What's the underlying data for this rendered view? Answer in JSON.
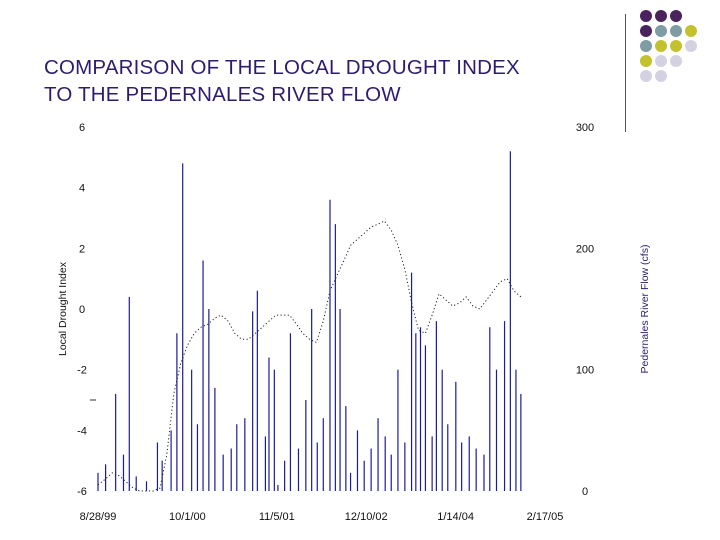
{
  "title": {
    "line1": "COMPARISON OF THE LOCAL DROUGHT INDEX",
    "line2": "TO THE PEDERNALES RIVER FLOW"
  },
  "decor": {
    "colors": {
      "purple": "#4a235c",
      "slate": "#7e9ca3",
      "olive": "#c4c12e",
      "lavender": "#d4d2e2"
    },
    "grid": [
      [
        "purple",
        "purple",
        "purple",
        "",
        ""
      ],
      [
        "purple",
        "slate",
        "slate",
        "olive",
        ""
      ],
      [
        "slate",
        "olive",
        "olive",
        "lavender",
        ""
      ],
      [
        "olive",
        "lavender",
        "lavender",
        "",
        ""
      ],
      [
        "lavender",
        "lavender",
        "",
        "",
        ""
      ]
    ]
  },
  "chart_data": {
    "type": "line",
    "y_left": {
      "label": "Local Drought Index",
      "min": -6,
      "max": 6,
      "ticks": [
        "6",
        "4",
        "2",
        "0",
        "-2",
        "-4",
        "-6"
      ]
    },
    "y_right": {
      "label": "Pedernales River Flow (cfs)",
      "min": 0,
      "max": 300,
      "ticks": [
        "300",
        "200",
        "100",
        "0"
      ]
    },
    "x": {
      "start": "8/28/99",
      "end": "2/17/05",
      "ticks": [
        "8/28/99",
        "10/1/00",
        "11/5/01",
        "12/10/02",
        "1/14/04",
        "2/17/05"
      ]
    },
    "grid": false,
    "legend": "none",
    "colors": {
      "flow": "#1c1c9a",
      "index": "#222222"
    },
    "series": [
      {
        "axis": "left",
        "style": "dotted",
        "points": [
          [
            "8/28/99",
            -5.8
          ],
          [
            "10/1/99",
            -5.6
          ],
          [
            "11/1/99",
            -5.4
          ],
          [
            "12/1/99",
            -5.5
          ],
          [
            "1/1/00",
            -5.7
          ],
          [
            "2/1/00",
            -5.9
          ],
          [
            "3/1/00",
            -6.0
          ],
          [
            "4/1/00",
            -6.0
          ],
          [
            "5/1/00",
            -6.0
          ],
          [
            "6/1/00",
            -5.9
          ],
          [
            "7/1/00",
            -4.8
          ],
          [
            "8/1/00",
            -2.8
          ],
          [
            "9/1/00",
            -1.8
          ],
          [
            "10/1/00",
            -1.2
          ],
          [
            "11/1/00",
            -0.8
          ],
          [
            "12/1/00",
            -0.6
          ],
          [
            "1/1/01",
            -0.5
          ],
          [
            "2/1/01",
            -0.3
          ],
          [
            "3/1/01",
            -0.2
          ],
          [
            "4/1/01",
            -0.4
          ],
          [
            "5/1/01",
            -0.8
          ],
          [
            "6/1/01",
            -1.0
          ],
          [
            "7/1/01",
            -1.0
          ],
          [
            "8/1/01",
            -0.8
          ],
          [
            "9/1/01",
            -0.6
          ],
          [
            "10/1/01",
            -0.4
          ],
          [
            "11/1/01",
            -0.2
          ],
          [
            "12/1/01",
            -0.2
          ],
          [
            "1/1/02",
            -0.2
          ],
          [
            "2/1/02",
            -0.5
          ],
          [
            "3/1/02",
            -0.8
          ],
          [
            "4/1/02",
            -1.0
          ],
          [
            "5/1/02",
            -1.1
          ],
          [
            "6/1/02",
            -0.4
          ],
          [
            "7/1/02",
            0.6
          ],
          [
            "8/1/02",
            1.1
          ],
          [
            "9/1/02",
            1.6
          ],
          [
            "10/1/02",
            2.1
          ],
          [
            "11/1/02",
            2.3
          ],
          [
            "12/1/02",
            2.5
          ],
          [
            "1/1/03",
            2.7
          ],
          [
            "2/1/03",
            2.8
          ],
          [
            "3/1/03",
            2.9
          ],
          [
            "4/1/03",
            2.6
          ],
          [
            "5/1/03",
            2.1
          ],
          [
            "6/1/03",
            1.3
          ],
          [
            "7/1/03",
            0.2
          ],
          [
            "8/1/03",
            -0.7
          ],
          [
            "9/1/03",
            -0.8
          ],
          [
            "10/1/03",
            -0.2
          ],
          [
            "11/1/03",
            0.5
          ],
          [
            "12/1/03",
            0.3
          ],
          [
            "1/1/04",
            0.1
          ],
          [
            "2/1/04",
            0.2
          ],
          [
            "3/1/04",
            0.4
          ],
          [
            "4/1/04",
            0.1
          ],
          [
            "5/1/04",
            0.0
          ],
          [
            "6/1/04",
            0.3
          ],
          [
            "7/1/04",
            0.6
          ],
          [
            "8/1/04",
            0.9
          ],
          [
            "9/1/04",
            1.0
          ],
          [
            "10/1/04",
            0.6
          ],
          [
            "11/1/04",
            0.4
          ]
        ]
      },
      {
        "axis": "right",
        "style": "spikes",
        "spikes": [
          [
            "8/28/99",
            15
          ],
          [
            "10/1/99",
            22
          ],
          [
            "11/15/99",
            80
          ],
          [
            "12/20/99",
            30
          ],
          [
            "1/15/00",
            160
          ],
          [
            "2/15/00",
            12
          ],
          [
            "4/1/00",
            8
          ],
          [
            "5/20/00",
            40
          ],
          [
            "6/10/00",
            25
          ],
          [
            "7/20/00",
            50
          ],
          [
            "8/15/00",
            130
          ],
          [
            "9/10/00",
            270
          ],
          [
            "10/20/00",
            100
          ],
          [
            "11/15/00",
            55
          ],
          [
            "12/10/00",
            190
          ],
          [
            "1/5/01",
            150
          ],
          [
            "2/1/01",
            85
          ],
          [
            "3/10/01",
            30
          ],
          [
            "4/15/01",
            35
          ],
          [
            "5/10/01",
            55
          ],
          [
            "6/15/01",
            60
          ],
          [
            "7/20/01",
            148
          ],
          [
            "8/10/01",
            165
          ],
          [
            "9/15/01",
            45
          ],
          [
            "10/1/01",
            110
          ],
          [
            "10/25/01",
            100
          ],
          [
            "11/10/01",
            5
          ],
          [
            "12/10/01",
            25
          ],
          [
            "1/5/02",
            130
          ],
          [
            "2/10/02",
            35
          ],
          [
            "3/15/02",
            75
          ],
          [
            "4/10/02",
            150
          ],
          [
            "5/5/02",
            40
          ],
          [
            "6/1/02",
            60
          ],
          [
            "7/1/02",
            240
          ],
          [
            "7/25/02",
            220
          ],
          [
            "8/15/02",
            150
          ],
          [
            "9/10/02",
            70
          ],
          [
            "10/1/02",
            15
          ],
          [
            "11/1/02",
            50
          ],
          [
            "12/1/02",
            25
          ],
          [
            "1/1/03",
            35
          ],
          [
            "2/1/03",
            60
          ],
          [
            "3/5/03",
            45
          ],
          [
            "4/1/03",
            30
          ],
          [
            "5/1/03",
            100
          ],
          [
            "6/1/03",
            40
          ],
          [
            "7/1/03",
            180
          ],
          [
            "7/20/03",
            130
          ],
          [
            "8/10/03",
            135
          ],
          [
            "9/1/03",
            120
          ],
          [
            "10/1/03",
            45
          ],
          [
            "10/20/03",
            140
          ],
          [
            "11/15/03",
            100
          ],
          [
            "12/10/03",
            55
          ],
          [
            "1/15/04",
            90
          ],
          [
            "2/10/04",
            40
          ],
          [
            "3/15/04",
            45
          ],
          [
            "4/15/04",
            35
          ],
          [
            "5/20/04",
            30
          ],
          [
            "6/15/04",
            135
          ],
          [
            "7/15/04",
            100
          ],
          [
            "8/20/04",
            140
          ],
          [
            "9/15/04",
            280
          ],
          [
            "10/10/04",
            100
          ],
          [
            "11/1/04",
            80
          ]
        ]
      }
    ]
  }
}
